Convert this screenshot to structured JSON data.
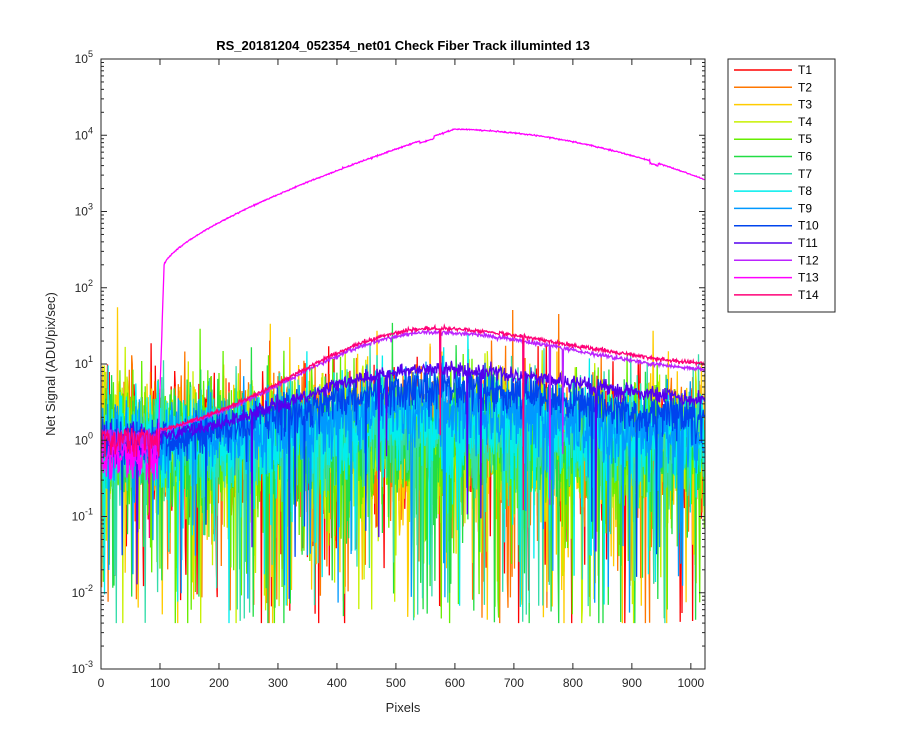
{
  "chart_data": {
    "type": "line",
    "title": "RS_20181204_052354_net01   Check Fiber     Track illuminted 13",
    "xlabel": "Pixels",
    "ylabel": "Net Signal (ADU/pix/sec)",
    "xlim": [
      0,
      1024
    ],
    "ylim": [
      0.001,
      100000
    ],
    "yscale": "log",
    "grid": false,
    "legend_position": "outside-right",
    "x_ticks": [
      "0",
      "100",
      "200",
      "300",
      "400",
      "500",
      "600",
      "700",
      "800",
      "900",
      "1000"
    ],
    "y_ticks": [
      {
        "base": "10",
        "exp": "-3"
      },
      {
        "base": "10",
        "exp": "-2"
      },
      {
        "base": "10",
        "exp": "-1"
      },
      {
        "base": "10",
        "exp": "0"
      },
      {
        "base": "10",
        "exp": "1"
      },
      {
        "base": "10",
        "exp": "2"
      },
      {
        "base": "10",
        "exp": "3"
      },
      {
        "base": "10",
        "exp": "4"
      },
      {
        "base": "10",
        "exp": "5"
      }
    ],
    "series": [
      {
        "name": "T1",
        "color": "#ff0000",
        "peak": 1.0,
        "noise": 1.3
      },
      {
        "name": "T2",
        "color": "#ff7700",
        "peak": 1.0,
        "noise": 1.3
      },
      {
        "name": "T3",
        "color": "#ffcc00",
        "peak": 1.0,
        "noise": 1.3
      },
      {
        "name": "T4",
        "color": "#c8f000",
        "peak": 1.0,
        "noise": 1.3
      },
      {
        "name": "T5",
        "color": "#66ee00",
        "peak": 1.0,
        "noise": 1.3
      },
      {
        "name": "T6",
        "color": "#22dd44",
        "peak": 1.1,
        "noise": 1.2
      },
      {
        "name": "T7",
        "color": "#33ddaa",
        "peak": 1.3,
        "noise": 1.1
      },
      {
        "name": "T8",
        "color": "#00eeee",
        "peak": 1.6,
        "noise": 1.0
      },
      {
        "name": "T9",
        "color": "#0099ff",
        "peak": 2.7,
        "noise": 0.7
      },
      {
        "name": "T10",
        "color": "#0044ee",
        "peak": 4.8,
        "noise": 0.4
      },
      {
        "name": "T11",
        "color": "#5500ee",
        "peak": 8.5,
        "noise": 0.15
      },
      {
        "name": "T12",
        "color": "#bb22ff",
        "peak": 26,
        "noise": 0.04,
        "end": 7
      },
      {
        "name": "T13",
        "color": "#ff00ff",
        "peak": 12000,
        "noise": 0.0,
        "end": 2600,
        "step_at": 95
      },
      {
        "name": "T14",
        "color": "#ff0077",
        "peak": 29,
        "noise": 0.04,
        "end": 8.5
      }
    ]
  }
}
